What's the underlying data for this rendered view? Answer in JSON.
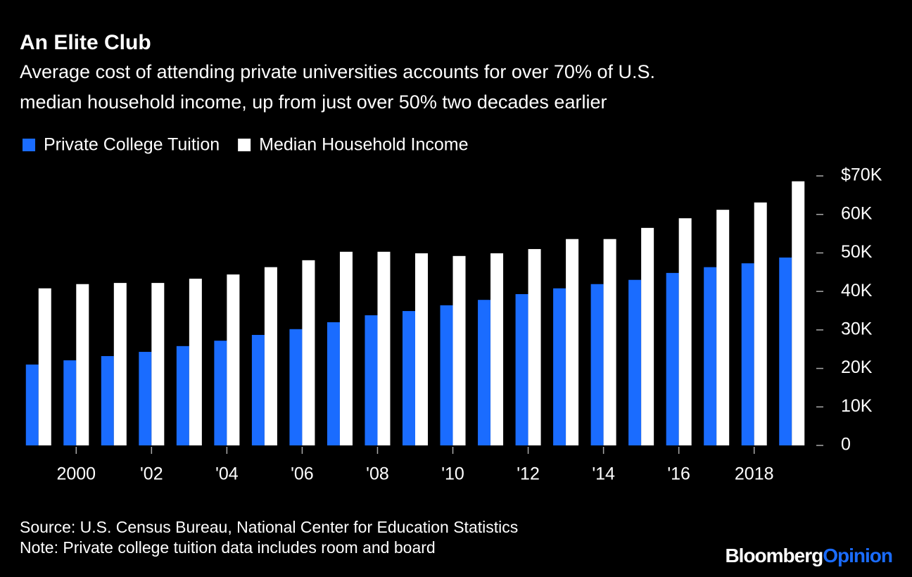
{
  "chart_data": {
    "type": "bar",
    "title": "An Elite Club",
    "subtitle": [
      "Average cost of attending private universities accounts for over 70% of U.S.",
      "median household income, up from just over 50% two decades earlier"
    ],
    "categories": [
      null,
      "2000",
      null,
      "'02",
      null,
      "'04",
      null,
      "'06",
      null,
      "'08",
      null,
      "'10",
      null,
      "'12",
      null,
      "'14",
      null,
      "'16",
      null,
      "2018",
      null
    ],
    "series": [
      {
        "name": "Private College Tuition",
        "color": "#1a6cff",
        "values": [
          21000,
          22100,
          23200,
          24300,
          25800,
          27200,
          28700,
          30200,
          32000,
          33800,
          34900,
          36400,
          37800,
          39300,
          40800,
          41900,
          43000,
          44800,
          46300,
          47300,
          48800
        ]
      },
      {
        "name": "Median Household Income",
        "color": "#ffffff",
        "values": [
          40800,
          41900,
          42200,
          42200,
          43300,
          44400,
          46300,
          48100,
          50300,
          50300,
          49900,
          49200,
          49900,
          51000,
          53600,
          53600,
          56500,
          59000,
          61200,
          63100,
          68600
        ]
      }
    ],
    "ylim": [
      0,
      70000
    ],
    "yticks": [
      0,
      {
        "value": 10000,
        "label": "10K"
      },
      {
        "value": 20000,
        "label": "20K"
      },
      {
        "value": 30000,
        "label": "30K"
      },
      {
        "value": 40000,
        "label": "40K"
      },
      {
        "value": 50000,
        "label": "50K"
      },
      {
        "value": 60000,
        "label": "60K"
      },
      {
        "value": 70000,
        "label": "$70K"
      }
    ],
    "y_axis_side": "right",
    "grid": false,
    "legend": "top-left",
    "source": "Source: U.S. Census Bureau, National Center for Education Statistics",
    "note": "Note: Private college tuition data includes room and board",
    "brand": "Bloomberg",
    "brand_suffix": "Opinion"
  }
}
